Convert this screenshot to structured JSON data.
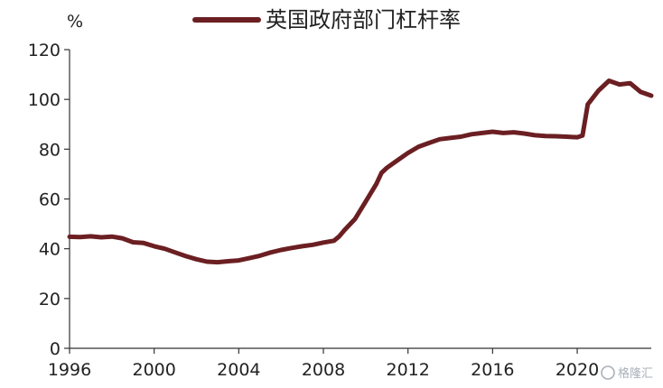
{
  "chart_data": {
    "type": "line",
    "unit_label": "%",
    "x_ticks": [
      "1996",
      "2000",
      "2004",
      "2008",
      "2012",
      "2016",
      "2020"
    ],
    "y_ticks": [
      "0",
      "20",
      "40",
      "60",
      "80",
      "100",
      "120"
    ],
    "xlim": [
      1996,
      2023.5
    ],
    "ylim": [
      0,
      120
    ],
    "grid": false,
    "legend_position": "top",
    "series": [
      {
        "name": "英国政府部门杠杆率",
        "color": "#6b1f22",
        "points": [
          [
            1996.0,
            44.8
          ],
          [
            1996.5,
            44.7
          ],
          [
            1997.0,
            45.0
          ],
          [
            1997.5,
            44.6
          ],
          [
            1998.0,
            44.9
          ],
          [
            1998.5,
            44.2
          ],
          [
            1999.0,
            42.6
          ],
          [
            1999.5,
            42.3
          ],
          [
            2000.0,
            41.0
          ],
          [
            2000.5,
            40.0
          ],
          [
            2001.0,
            38.5
          ],
          [
            2001.5,
            37.0
          ],
          [
            2002.0,
            35.8
          ],
          [
            2002.5,
            34.8
          ],
          [
            2003.0,
            34.6
          ],
          [
            2003.5,
            35.0
          ],
          [
            2004.0,
            35.3
          ],
          [
            2004.5,
            36.2
          ],
          [
            2005.0,
            37.2
          ],
          [
            2005.5,
            38.5
          ],
          [
            2006.0,
            39.5
          ],
          [
            2006.5,
            40.3
          ],
          [
            2007.0,
            41.0
          ],
          [
            2007.5,
            41.6
          ],
          [
            2008.0,
            42.5
          ],
          [
            2008.5,
            43.2
          ],
          [
            2008.75,
            45.0
          ],
          [
            2009.0,
            47.5
          ],
          [
            2009.5,
            52.0
          ],
          [
            2010.0,
            59.0
          ],
          [
            2010.5,
            66.0
          ],
          [
            2010.75,
            70.5
          ],
          [
            2011.0,
            72.5
          ],
          [
            2011.5,
            75.5
          ],
          [
            2012.0,
            78.5
          ],
          [
            2012.5,
            81.0
          ],
          [
            2013.0,
            82.5
          ],
          [
            2013.5,
            84.0
          ],
          [
            2014.0,
            84.5
          ],
          [
            2014.5,
            85.0
          ],
          [
            2015.0,
            86.0
          ],
          [
            2015.5,
            86.5
          ],
          [
            2016.0,
            87.0
          ],
          [
            2016.5,
            86.5
          ],
          [
            2017.0,
            86.8
          ],
          [
            2017.5,
            86.3
          ],
          [
            2018.0,
            85.6
          ],
          [
            2018.5,
            85.3
          ],
          [
            2019.0,
            85.2
          ],
          [
            2019.5,
            85.0
          ],
          [
            2020.0,
            84.8
          ],
          [
            2020.25,
            85.5
          ],
          [
            2020.5,
            98.0
          ],
          [
            2021.0,
            103.5
          ],
          [
            2021.5,
            107.5
          ],
          [
            2022.0,
            106.0
          ],
          [
            2022.5,
            106.5
          ],
          [
            2023.0,
            103.0
          ],
          [
            2023.5,
            101.5
          ]
        ]
      }
    ]
  },
  "watermark": {
    "text": "格隆汇",
    "icon": "gelonghui-logo-icon"
  }
}
